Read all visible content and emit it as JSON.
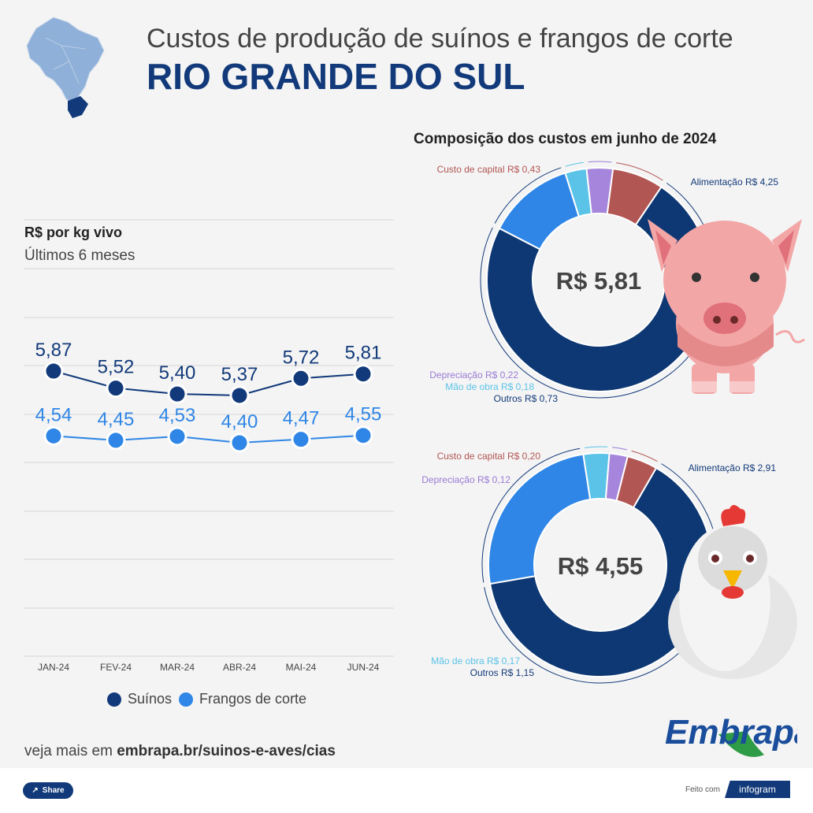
{
  "header": {
    "title": "Custos de produção de suínos e frangos de corte",
    "subtitle": "RIO GRANDE DO SUL"
  },
  "composition_title": "Composição dos custos em junho de 2024",
  "line_panel": {
    "title": "R$ por kg vivo",
    "subtitle": "Últimos 6 meses"
  },
  "legend": {
    "suinos": "Suínos",
    "frangos": "Frangos de corte"
  },
  "colors": {
    "suinos": "#123a7a",
    "frangos": "#2f86e6",
    "alimentacao": "#0e3873",
    "custo_capital": "#b25654",
    "depreciacao": "#a586dc",
    "mao_de_obra": "#5bc3e8",
    "outros": "#2f86e6",
    "brand": "#123a7a"
  },
  "chart_data": [
    {
      "type": "line",
      "title": "R$ por kg vivo",
      "subtitle": "Últimos 6 meses",
      "categories": [
        "JAN-24",
        "FEV-24",
        "MAR-24",
        "ABR-24",
        "MAI-24",
        "JUN-24"
      ],
      "series": [
        {
          "name": "Suínos",
          "values": [
            5.87,
            5.52,
            5.4,
            5.37,
            5.72,
            5.81
          ],
          "labels": [
            "5,87",
            "5,52",
            "5,40",
            "5,37",
            "5,72",
            "5,81"
          ]
        },
        {
          "name": "Frangos de corte",
          "values": [
            4.54,
            4.45,
            4.53,
            4.4,
            4.47,
            4.55
          ],
          "labels": [
            "4,54",
            "4,45",
            "4,53",
            "4,40",
            "4,47",
            "4,55"
          ]
        }
      ],
      "grid": true,
      "legend": "bottom"
    },
    {
      "type": "pie",
      "variant": "donut",
      "center_label": "R$ 5,81",
      "total": 5.81,
      "slices": [
        {
          "label": "Alimentação R$ 4,25",
          "value": 4.25
        },
        {
          "label": "Outros R$ 0,73",
          "value": 0.73
        },
        {
          "label": "Mão de obra R$ 0,18",
          "value": 0.18
        },
        {
          "label": "Depreciação R$ 0,22",
          "value": 0.22
        },
        {
          "label": "Custo de capital R$ 0,43",
          "value": 0.43
        }
      ]
    },
    {
      "type": "pie",
      "variant": "donut",
      "center_label": "R$ 4,55",
      "total": 4.55,
      "slices": [
        {
          "label": "Alimentação R$ 2,91",
          "value": 2.91
        },
        {
          "label": "Outros R$ 1,15",
          "value": 1.15
        },
        {
          "label": "Mão de obra R$ 0,17",
          "value": 0.17
        },
        {
          "label": "Depreciação R$ 0,12",
          "value": 0.12
        },
        {
          "label": "Custo de capital R$ 0,20",
          "value": 0.2
        }
      ]
    }
  ],
  "footer": {
    "link_prefix": "veja mais em ",
    "link_text": "embrapa.br/suinos-e-aves/cias",
    "logo_text": "Embrapa",
    "share_label": "Share",
    "made_with": "Feito com",
    "infogram": "infogram"
  }
}
